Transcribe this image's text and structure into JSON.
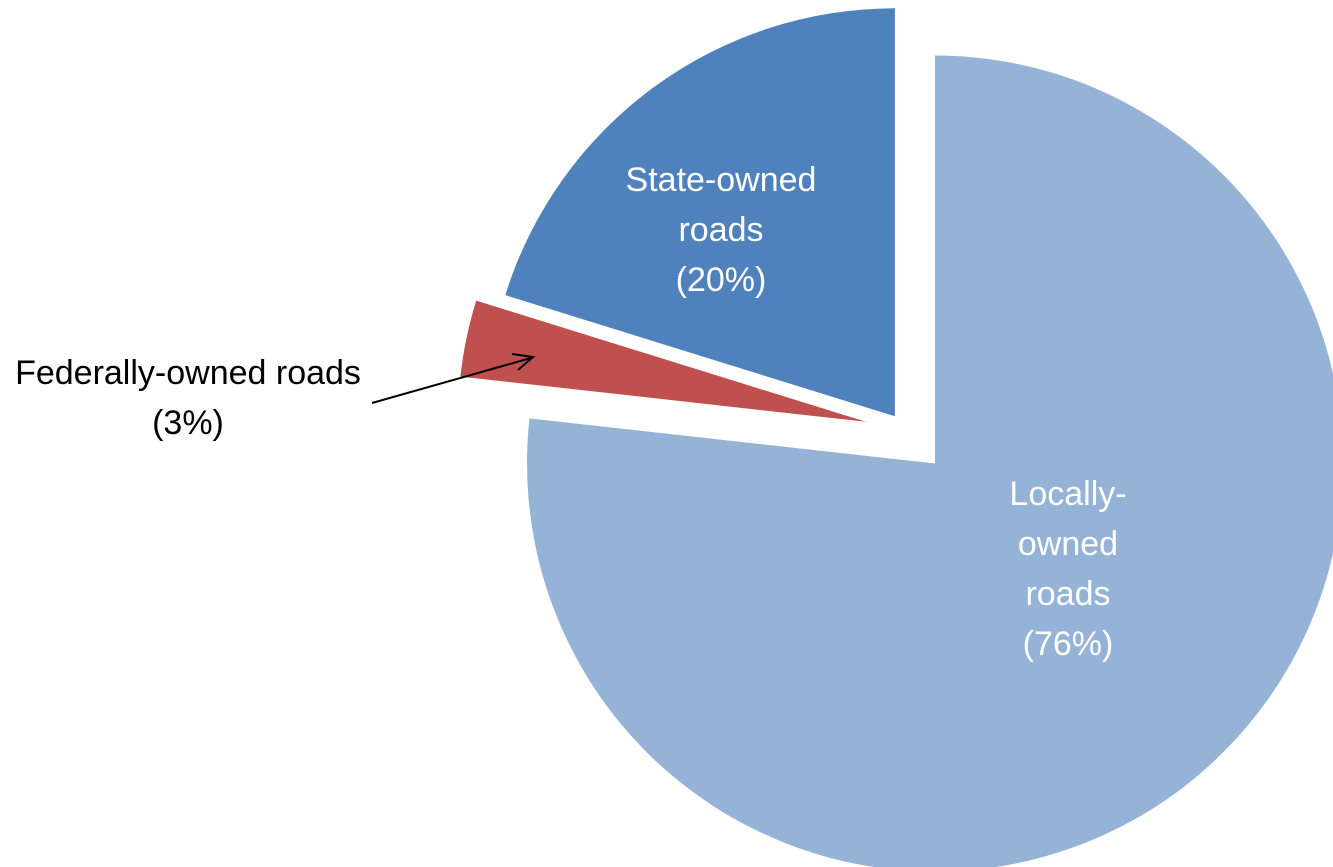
{
  "chart_data": {
    "type": "pie",
    "categories": [
      "Locally-owned roads",
      "Federally-owned roads",
      "State-owned roads"
    ],
    "values": [
      76,
      3,
      20
    ],
    "value_labels": [
      "(76%)",
      "(3%)",
      "(20%)"
    ],
    "colors": [
      "#95b3d7",
      "#c0504d",
      "#4f81bd"
    ]
  }
}
